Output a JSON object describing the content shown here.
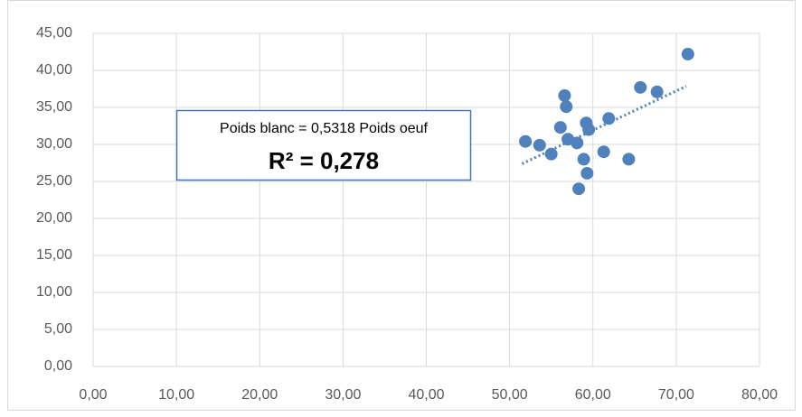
{
  "chart_data": {
    "type": "scatter",
    "x": [
      51.9,
      53.6,
      55.0,
      56.1,
      56.6,
      56.8,
      57.0,
      58.1,
      58.3,
      58.9,
      59.2,
      59.3,
      59.5,
      61.3,
      61.9,
      64.3,
      65.7,
      67.7,
      71.4
    ],
    "values": [
      30.4,
      29.9,
      28.7,
      32.3,
      36.6,
      35.1,
      30.7,
      30.2,
      24.0,
      28.0,
      32.9,
      26.1,
      32.0,
      29.0,
      33.5,
      28.0,
      37.7,
      37.1,
      42.2
    ],
    "color": "#4f81bd",
    "trendline": {
      "slope": 0.5318,
      "xrange": [
        51.5,
        71.2
      ]
    },
    "annotation": [
      "Poids blanc = 0,5318 Poids oeuf",
      "R² = 0,278"
    ],
    "xlim": [
      0,
      80
    ],
    "xticks": [
      {
        "value": 0,
        "label": "0,00"
      },
      {
        "value": 10,
        "label": "10,00"
      },
      {
        "value": 20,
        "label": "20,00"
      },
      {
        "value": 30,
        "label": "30,00"
      },
      {
        "value": 40,
        "label": "40,00"
      },
      {
        "value": 50,
        "label": "50,00"
      },
      {
        "value": 60,
        "label": "60,00"
      },
      {
        "value": 70,
        "label": "70,00"
      },
      {
        "value": 80,
        "label": "80,00"
      }
    ],
    "ylim": [
      0,
      45
    ],
    "yticks": [
      {
        "value": 0,
        "label": "0,00"
      },
      {
        "value": 5,
        "label": "5,00"
      },
      {
        "value": 10,
        "label": "10,00"
      },
      {
        "value": 15,
        "label": "15,00"
      },
      {
        "value": 20,
        "label": "20,00"
      },
      {
        "value": 25,
        "label": "25,00"
      },
      {
        "value": 30,
        "label": "30,00"
      },
      {
        "value": 35,
        "label": "35,00"
      },
      {
        "value": 40,
        "label": "40,00"
      },
      {
        "value": 45,
        "label": "45,00"
      }
    ],
    "grid": true
  }
}
